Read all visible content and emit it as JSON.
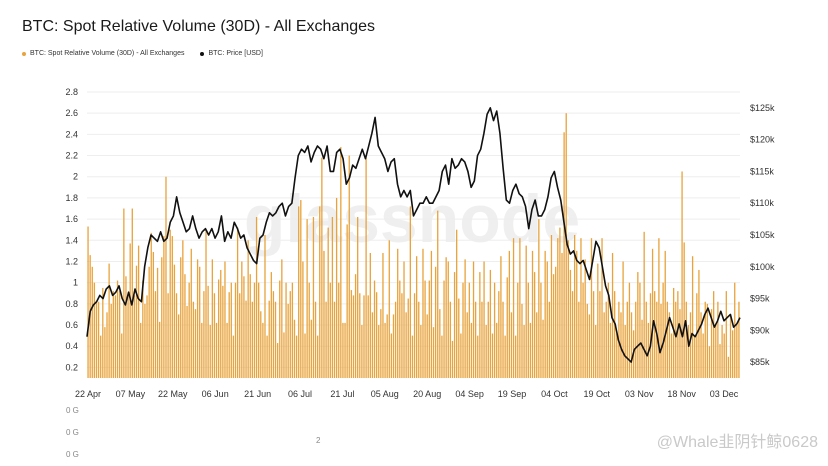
{
  "header": {
    "title": "BTC: Spot Relative Volume (30D) - All Exchanges"
  },
  "legend": [
    {
      "label": "BTC: Spot Relative Volume (30D) - All Exchanges",
      "color": "#e8a33d"
    },
    {
      "label": "BTC: Price [USD]",
      "color": "#111111"
    }
  ],
  "watermark": "glassnode",
  "footer": {
    "fragments": [
      "0 G",
      "0 G",
      "0 G",
      "2"
    ],
    "overlay_text": "@Whale韭阴针鲸0628"
  },
  "chart_data": {
    "type": "bar",
    "title": "BTC: Spot Relative Volume (30D) - All Exchanges",
    "x_ticks": [
      "22 Apr",
      "07 May",
      "22 May",
      "06 Jun",
      "21 Jun",
      "06 Jul",
      "21 Jul",
      "05 Aug",
      "20 Aug",
      "04 Sep",
      "19 Sep",
      "04 Oct",
      "19 Oct",
      "03 Nov",
      "18 Nov",
      "03 Dec"
    ],
    "y_left": {
      "ticks": [
        "0.2",
        "0.4",
        "0.6",
        "0.8",
        "1",
        "1.2",
        "1.4",
        "1.6",
        "1.8",
        "2",
        "2.2",
        "2.4",
        "2.6",
        "2.8"
      ],
      "ylim": [
        0.1,
        2.8
      ]
    },
    "y_right": {
      "ticks": [
        "$85k",
        "$90k",
        "$95k",
        "$100k",
        "$105k",
        "$110k",
        "$115k",
        "$120k",
        "$125k"
      ],
      "ylim": [
        82500,
        127500
      ]
    },
    "series": [
      {
        "name": "BTC: Spot Relative Volume (30D) - All Exchanges",
        "type": "bar",
        "color": "#e8a33d",
        "values": [
          1.53,
          1.26,
          1.15,
          1.0,
          0.82,
          0.82,
          0.5,
          0.95,
          0.58,
          0.72,
          1.18,
          0.8,
          0.92,
          0.88,
          1.02,
          0.92,
          0.52,
          1.7,
          1.06,
          0.88,
          1.37,
          1.7,
          0.88,
          1.16,
          1.35,
          0.62,
          1.02,
          0.8,
          0.88,
          1.15,
          1.47,
          1.29,
          0.92,
          1.14,
          0.63,
          1.24,
          1.44,
          2.0,
          0.9,
          1.5,
          1.44,
          1.17,
          0.9,
          0.7,
          1.24,
          1.4,
          1.08,
          0.78,
          1.0,
          1.32,
          0.82,
          0.75,
          1.22,
          1.15,
          0.62,
          0.92,
          1.49,
          0.97,
          0.6,
          1.22,
          0.9,
          0.62,
          1.03,
          1.12,
          0.97,
          1.2,
          0.62,
          0.91,
          1.0,
          0.5,
          1.0,
          1.52,
          0.9,
          1.2,
          1.06,
          0.83,
          1.4,
          1.08,
          0.82,
          1.0,
          1.62,
          1.0,
          0.73,
          0.62,
          1.45,
          0.5,
          0.83,
          1.1,
          0.92,
          0.82,
          0.43,
          1.02,
          1.22,
          0.53,
          1.0,
          0.8,
          0.92,
          1.0,
          0.65,
          0.5,
          1.72,
          1.78,
          1.2,
          0.52,
          1.6,
          1.0,
          0.65,
          1.62,
          0.82,
          0.5,
          1.72,
          2.18,
          1.3,
          0.82,
          1.52,
          1.0,
          1.62,
          0.82,
          1.8,
          1.0,
          2.28,
          0.62,
          0.62,
          1.55,
          2.2,
          0.93,
          0.88,
          1.08,
          1.62,
          0.9,
          0.6,
          0.88,
          2.18,
          0.88,
          1.28,
          0.72,
          1.02,
          0.91,
          0.6,
          0.75,
          1.28,
          0.62,
          0.7,
          1.4,
          0.52,
          0.7,
          0.82,
          1.32,
          1.02,
          0.9,
          1.2,
          0.72,
          0.85,
          1.72,
          0.5,
          0.9,
          1.25,
          0.82,
          0.6,
          1.32,
          1.02,
          0.7,
          1.02,
          1.3,
          0.58,
          1.15,
          1.68,
          0.75,
          0.5,
          1.02,
          1.24,
          1.2,
          0.82,
          0.45,
          1.1,
          1.5,
          0.85,
          0.52,
          1.0,
          1.22,
          0.72,
          1.0,
          0.62,
          1.2,
          0.82,
          0.5,
          1.1,
          0.82,
          1.2,
          0.6,
          0.82,
          1.12,
          0.52,
          1.0,
          0.62,
          0.92,
          1.25,
          0.82,
          0.5,
          1.05,
          1.3,
          0.72,
          1.42,
          0.5,
          1.0,
          1.42,
          0.8,
          0.6,
          1.35,
          1.0,
          0.62,
          1.3,
          1.1,
          0.72,
          1.6,
          1.0,
          0.65,
          1.3,
          1.2,
          0.82,
          1.45,
          1.08,
          1.15,
          1.42,
          1.52,
          1.28,
          2.42,
          2.6,
          1.4,
          1.12,
          0.92,
          1.45,
          1.3,
          0.82,
          1.42,
          1.0,
          1.22,
          0.8,
          0.7,
          1.42,
          0.92,
          0.6,
          1.18,
          0.92,
          1.42,
          0.72,
          0.82,
          1.0,
          0.62,
          1.28,
          0.92,
          0.52,
          0.82,
          0.72,
          1.2,
          0.6,
          0.82,
          1.0,
          0.72,
          0.55,
          0.82,
          1.1,
          1.0,
          0.65,
          1.48,
          0.82,
          0.62,
          0.9,
          1.32,
          0.92,
          0.82,
          1.42,
          0.8,
          1.0,
          1.3,
          0.82,
          0.72,
          0.52,
          0.95,
          0.82,
          0.92,
          0.75,
          2.05,
          1.38,
          0.82,
          0.6,
          0.72,
          1.25,
          0.5,
          0.9,
          1.12,
          0.72,
          0.52,
          0.82,
          0.8,
          0.4,
          0.75,
          0.92,
          0.6,
          0.82,
          0.42,
          0.6,
          0.52,
          0.92,
          0.3,
          0.7,
          0.55,
          1.0,
          0.6,
          0.82
        ]
      },
      {
        "name": "BTC: Price [USD]",
        "type": "line",
        "color": "#111111",
        "values": [
          89000,
          93000,
          94000,
          94500,
          95500,
          95000,
          96500,
          97000,
          95500,
          96000,
          97000,
          95000,
          94000,
          96000,
          94000,
          96500,
          95000,
          94500,
          100000,
          103000,
          105000,
          104500,
          104000,
          105500,
          104000,
          104500,
          107000,
          108000,
          111000,
          108500,
          107000,
          105500,
          106000,
          108000,
          106000,
          104500,
          105500,
          106000,
          105000,
          106000,
          104500,
          105500,
          108000,
          104000,
          105500,
          104500,
          107000,
          106000,
          104500,
          105000,
          103000,
          102000,
          101000,
          100500,
          104500,
          105000,
          107000,
          108500,
          108000,
          108500,
          109500,
          110000,
          108000,
          109500,
          110000,
          114000,
          117500,
          118500,
          118000,
          119000,
          116500,
          118000,
          119000,
          118500,
          117000,
          119000,
          115000,
          115000,
          118000,
          118500,
          117000,
          113000,
          114000,
          116000,
          115500,
          117000,
          118500,
          117000,
          119000,
          121000,
          123500,
          119000,
          118000,
          117000,
          115000,
          116500,
          117000,
          113000,
          111000,
          112000,
          111000,
          112000,
          108000,
          109000,
          110000,
          110000,
          111000,
          110000,
          110000,
          111000,
          112000,
          115000,
          116000,
          113000,
          117000,
          115500,
          116000,
          117000,
          116500,
          115000,
          112500,
          113500,
          117500,
          118500,
          121000,
          124000,
          125000,
          123000,
          124500,
          121000,
          115500,
          110500,
          110000,
          112000,
          113000,
          111500,
          111000,
          109500,
          106000,
          109000,
          110500,
          108000,
          108000,
          109000,
          111000,
          114000,
          115000,
          112500,
          110500,
          107000,
          103500,
          102000,
          102500,
          101000,
          100500,
          101000,
          99500,
          98000,
          101000,
          104000,
          103000,
          100000,
          97000,
          95500,
          92000,
          91000,
          88500,
          87000,
          86000,
          85500,
          85000,
          87000,
          87500,
          88000,
          87000,
          86000,
          87500,
          91500,
          89500,
          86500,
          88000,
          90000,
          92000,
          90500,
          89000,
          91000,
          89000,
          91500,
          87500,
          89500,
          89000,
          90000,
          91000,
          92500,
          93500,
          92000,
          90500,
          91500,
          93000,
          91500,
          92000,
          92500,
          90500,
          91000,
          92000
        ]
      }
    ]
  }
}
